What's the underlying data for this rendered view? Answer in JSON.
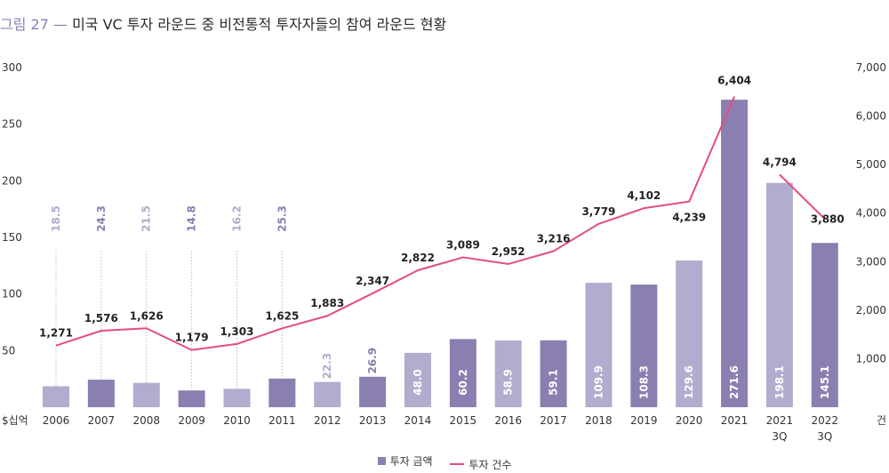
{
  "title": {
    "prefix": "그림 27 —",
    "text": "미국 VC 투자 라운드 중 비전통적 투자자들의 참여 라운드 현황"
  },
  "legend": {
    "bar_label": "투자 금액",
    "line_label": "투자 건수"
  },
  "chart_data": {
    "type": "bar",
    "categories": [
      "2006",
      "2007",
      "2008",
      "2009",
      "2010",
      "2011",
      "2012",
      "2013",
      "2014",
      "2015",
      "2016",
      "2017",
      "2018",
      "2019",
      "2020",
      "2021",
      "2021 3Q",
      "2022 3Q"
    ],
    "series": [
      {
        "name": "투자 금액",
        "type": "bar",
        "values": [
          18.5,
          24.3,
          21.5,
          14.8,
          16.2,
          25.3,
          22.3,
          26.9,
          48.0,
          60.2,
          58.9,
          59.1,
          109.9,
          108.3,
          129.6,
          271.6,
          198.1,
          145.1
        ],
        "labels": [
          "18.5",
          "24.3",
          "21.5",
          "14.8",
          "16.2",
          "25.3",
          "22.3",
          "26.9",
          "48.0",
          "60.2",
          "58.9",
          "59.1",
          "109.9",
          "108.3",
          "129.6",
          "271.6",
          "198.1",
          "145.1"
        ]
      },
      {
        "name": "투자 건수",
        "type": "line",
        "values": [
          1271,
          1576,
          1626,
          1179,
          1303,
          1625,
          1883,
          2347,
          2822,
          3089,
          2952,
          3216,
          3779,
          4102,
          4239,
          6404,
          4794,
          3880
        ],
        "labels": [
          "1,271",
          "1,576",
          "1,626",
          "1,179",
          "1,303",
          "1,625",
          "1,883",
          "2,347",
          "2,822",
          "3,089",
          "2,952",
          "3,216",
          "3,779",
          "4,102",
          "4,239",
          "6,404",
          "4,794",
          "3,880"
        ]
      }
    ],
    "y_left": {
      "label": "$십억",
      "range": [
        0,
        300
      ],
      "ticks": [
        "50",
        "100",
        "150",
        "200",
        "250",
        "300"
      ]
    },
    "y_right": {
      "label": "건",
      "range": [
        0,
        7000
      ],
      "ticks": [
        "1,000",
        "2,000",
        "3,000",
        "4,000",
        "5,000",
        "6,000",
        "7,000"
      ]
    },
    "colors": {
      "bar_dark": "#8a7fb0",
      "bar_light": "#b2acce",
      "line": "#e34e7a"
    },
    "grid": false,
    "legend_position": "bottom-center"
  }
}
